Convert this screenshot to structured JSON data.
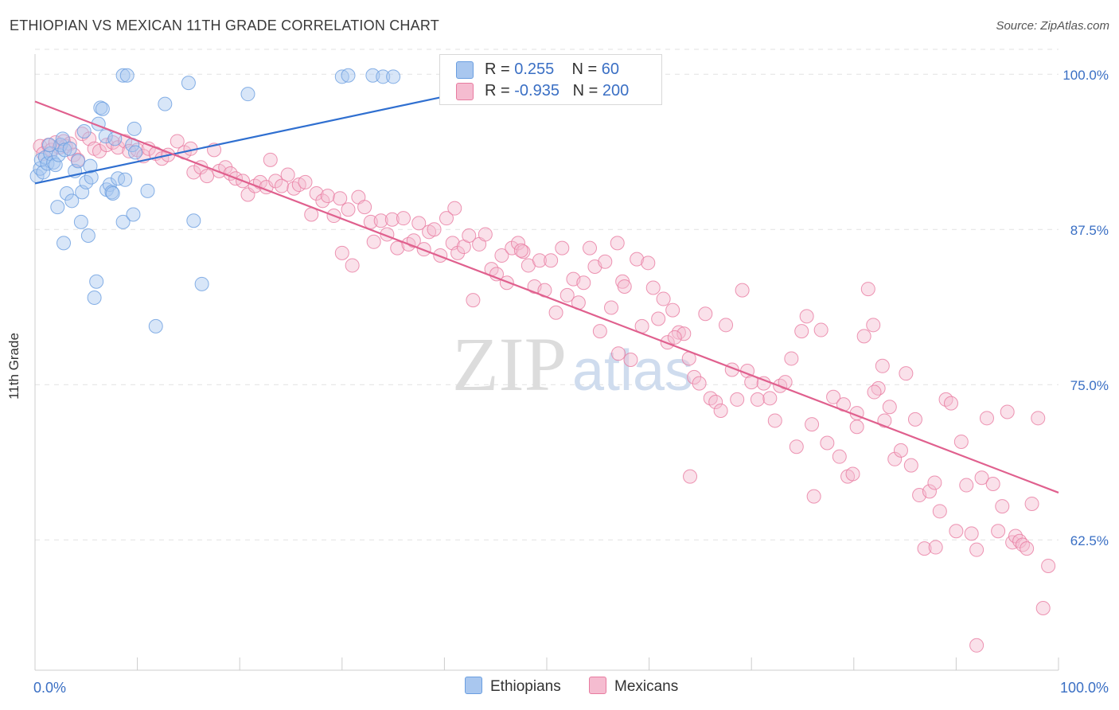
{
  "chart_data": {
    "type": "scatter",
    "title": "ETHIOPIAN VS MEXICAN 11TH GRADE CORRELATION CHART",
    "source": "Source: ZipAtlas.com",
    "ylabel": "11th Grade",
    "xlim": [
      0,
      100
    ],
    "ylim": [
      52,
      102
    ],
    "x_tick_labels": {
      "left": "0.0%",
      "right": "100.0%"
    },
    "y_ticks": [
      {
        "value": 100.0,
        "label": "100.0%"
      },
      {
        "value": 87.5,
        "label": "87.5%"
      },
      {
        "value": 75.0,
        "label": "75.0%"
      },
      {
        "value": 62.5,
        "label": "62.5%"
      }
    ],
    "grid": "horizontal dashed",
    "watermark": {
      "zip": "ZIP",
      "atlas": "atlas"
    },
    "legend": {
      "position": "top-center",
      "rows": [
        {
          "r_label": "R = ",
          "r_value": "0.255",
          "n_label": "N = ",
          "n_value": "60"
        },
        {
          "r_label": "R = ",
          "r_value": "-0.935",
          "n_label": "N = ",
          "n_value": "200"
        }
      ]
    },
    "series": [
      {
        "name": "Ethiopians",
        "color": "#6a9ee0",
        "fill": "#a9c7ef",
        "trend": {
          "x": [
            0,
            40
          ],
          "y": [
            91.2,
            98.2
          ]
        },
        "points": [
          [
            0.2,
            91.8
          ],
          [
            0.5,
            92.4
          ],
          [
            0.6,
            93.1
          ],
          [
            0.8,
            92.1
          ],
          [
            1.0,
            93.3
          ],
          [
            1.2,
            92.8
          ],
          [
            1.5,
            93.6
          ],
          [
            1.8,
            92.9
          ],
          [
            2.0,
            92.7
          ],
          [
            2.3,
            93.5
          ],
          [
            2.5,
            94.3
          ],
          [
            2.7,
            94.8
          ],
          [
            2.9,
            93.9
          ],
          [
            3.1,
            90.4
          ],
          [
            2.2,
            89.3
          ],
          [
            2.8,
            86.4
          ],
          [
            3.6,
            89.8
          ],
          [
            3.9,
            92.2
          ],
          [
            4.2,
            93.0
          ],
          [
            4.6,
            90.5
          ],
          [
            4.5,
            88.1
          ],
          [
            4.8,
            95.4
          ],
          [
            5.0,
            91.3
          ],
          [
            5.2,
            87.0
          ],
          [
            5.5,
            91.7
          ],
          [
            5.4,
            92.6
          ],
          [
            6.0,
            83.3
          ],
          [
            5.8,
            82.0
          ],
          [
            6.2,
            96.0
          ],
          [
            6.4,
            97.3
          ],
          [
            6.6,
            97.2
          ],
          [
            6.9,
            95.0
          ],
          [
            7.0,
            90.7
          ],
          [
            7.3,
            91.1
          ],
          [
            7.5,
            90.5
          ],
          [
            7.6,
            90.4
          ],
          [
            7.8,
            94.8
          ],
          [
            8.1,
            91.6
          ],
          [
            8.6,
            88.1
          ],
          [
            8.8,
            91.5
          ],
          [
            8.6,
            99.9
          ],
          [
            9.0,
            99.9
          ],
          [
            9.5,
            94.3
          ],
          [
            9.6,
            88.7
          ],
          [
            9.7,
            95.6
          ],
          [
            9.8,
            93.7
          ],
          [
            11.0,
            90.6
          ],
          [
            11.8,
            79.7
          ],
          [
            12.7,
            97.6
          ],
          [
            15.0,
            99.3
          ],
          [
            15.5,
            88.2
          ],
          [
            16.3,
            83.1
          ],
          [
            20.8,
            98.4
          ],
          [
            30.0,
            99.8
          ],
          [
            30.6,
            99.9
          ],
          [
            33.0,
            99.9
          ],
          [
            34.0,
            99.8
          ],
          [
            35.0,
            99.8
          ],
          [
            1.4,
            94.3
          ],
          [
            3.4,
            94.0
          ]
        ]
      },
      {
        "name": "Mexicans",
        "color": "#e87ba0",
        "fill": "#f5bcd0",
        "trend": {
          "x": [
            0,
            100
          ],
          "y": [
            97.8,
            66.3
          ]
        },
        "points": [
          [
            0.5,
            94.2
          ],
          [
            0.8,
            93.6
          ],
          [
            1.3,
            94.3
          ],
          [
            1.6,
            93.9
          ],
          [
            2.0,
            94.5
          ],
          [
            2.4,
            94.1
          ],
          [
            2.8,
            94.6
          ],
          [
            3.0,
            94.2
          ],
          [
            3.4,
            94.4
          ],
          [
            3.8,
            93.5
          ],
          [
            4.2,
            93.1
          ],
          [
            4.6,
            95.2
          ],
          [
            5.3,
            94.8
          ],
          [
            5.8,
            94.0
          ],
          [
            6.3,
            93.8
          ],
          [
            7.0,
            94.3
          ],
          [
            7.6,
            94.5
          ],
          [
            8.1,
            94.1
          ],
          [
            8.8,
            94.6
          ],
          [
            9.2,
            93.8
          ],
          [
            10.0,
            93.9
          ],
          [
            10.6,
            93.4
          ],
          [
            11.1,
            94.0
          ],
          [
            11.8,
            93.6
          ],
          [
            12.4,
            93.2
          ],
          [
            13.0,
            93.5
          ],
          [
            13.9,
            94.6
          ],
          [
            14.6,
            93.7
          ],
          [
            15.2,
            94.0
          ],
          [
            15.5,
            92.1
          ],
          [
            16.2,
            92.5
          ],
          [
            16.8,
            91.8
          ],
          [
            17.5,
            93.9
          ],
          [
            18.0,
            92.2
          ],
          [
            18.6,
            92.5
          ],
          [
            19.1,
            92.0
          ],
          [
            19.6,
            91.6
          ],
          [
            20.3,
            91.4
          ],
          [
            20.8,
            90.3
          ],
          [
            21.5,
            91.0
          ],
          [
            22.0,
            91.3
          ],
          [
            22.6,
            90.9
          ],
          [
            23.0,
            93.1
          ],
          [
            23.5,
            91.4
          ],
          [
            24.1,
            91.0
          ],
          [
            24.7,
            91.9
          ],
          [
            25.3,
            90.8
          ],
          [
            25.8,
            91.1
          ],
          [
            26.4,
            91.3
          ],
          [
            27.0,
            88.7
          ],
          [
            27.5,
            90.4
          ],
          [
            28.1,
            89.8
          ],
          [
            28.6,
            90.2
          ],
          [
            29.2,
            88.6
          ],
          [
            29.8,
            90.0
          ],
          [
            30.0,
            85.6
          ],
          [
            30.6,
            89.1
          ],
          [
            31.0,
            84.6
          ],
          [
            31.6,
            90.1
          ],
          [
            32.2,
            89.3
          ],
          [
            32.8,
            88.1
          ],
          [
            33.1,
            86.5
          ],
          [
            33.8,
            88.2
          ],
          [
            34.4,
            87.1
          ],
          [
            34.9,
            88.3
          ],
          [
            35.4,
            86.0
          ],
          [
            36.0,
            88.4
          ],
          [
            36.5,
            86.3
          ],
          [
            37.0,
            86.6
          ],
          [
            37.5,
            88.0
          ],
          [
            38.0,
            85.9
          ],
          [
            38.5,
            87.3
          ],
          [
            39.0,
            87.5
          ],
          [
            39.6,
            85.4
          ],
          [
            40.2,
            88.4
          ],
          [
            40.8,
            86.4
          ],
          [
            41.3,
            85.6
          ],
          [
            41.9,
            86.1
          ],
          [
            42.4,
            87.0
          ],
          [
            42.8,
            81.8
          ],
          [
            43.4,
            86.3
          ],
          [
            44.0,
            87.1
          ],
          [
            44.6,
            84.3
          ],
          [
            45.1,
            83.9
          ],
          [
            45.6,
            85.4
          ],
          [
            46.1,
            83.2
          ],
          [
            46.6,
            86.0
          ],
          [
            47.2,
            86.4
          ],
          [
            47.7,
            85.7
          ],
          [
            48.2,
            84.6
          ],
          [
            48.8,
            82.9
          ],
          [
            49.3,
            85.0
          ],
          [
            49.8,
            82.6
          ],
          [
            50.4,
            85.0
          ],
          [
            50.9,
            80.8
          ],
          [
            51.5,
            86.0
          ],
          [
            52.0,
            82.2
          ],
          [
            52.6,
            83.5
          ],
          [
            53.1,
            81.6
          ],
          [
            53.6,
            83.2
          ],
          [
            54.2,
            86.0
          ],
          [
            54.7,
            84.5
          ],
          [
            55.2,
            79.3
          ],
          [
            55.7,
            84.9
          ],
          [
            56.3,
            81.2
          ],
          [
            56.9,
            86.4
          ],
          [
            57.4,
            83.3
          ],
          [
            57.6,
            82.9
          ],
          [
            58.2,
            77.0
          ],
          [
            58.8,
            85.1
          ],
          [
            59.3,
            79.7
          ],
          [
            59.9,
            84.8
          ],
          [
            60.4,
            82.8
          ],
          [
            60.9,
            80.3
          ],
          [
            61.4,
            81.9
          ],
          [
            61.8,
            78.4
          ],
          [
            62.3,
            81.0
          ],
          [
            62.9,
            79.2
          ],
          [
            63.4,
            79.1
          ],
          [
            63.9,
            77.1
          ],
          [
            64.4,
            75.6
          ],
          [
            64.9,
            75.1
          ],
          [
            65.5,
            80.7
          ],
          [
            66.0,
            73.9
          ],
          [
            66.5,
            73.6
          ],
          [
            67.0,
            72.9
          ],
          [
            67.5,
            79.8
          ],
          [
            68.1,
            76.2
          ],
          [
            68.6,
            73.8
          ],
          [
            69.1,
            82.6
          ],
          [
            69.6,
            76.1
          ],
          [
            70.0,
            75.2
          ],
          [
            70.6,
            73.8
          ],
          [
            71.2,
            75.1
          ],
          [
            71.8,
            73.9
          ],
          [
            72.3,
            72.1
          ],
          [
            72.8,
            74.9
          ],
          [
            73.3,
            75.2
          ],
          [
            73.9,
            77.1
          ],
          [
            74.4,
            70.0
          ],
          [
            74.9,
            79.3
          ],
          [
            75.4,
            80.5
          ],
          [
            75.9,
            71.8
          ],
          [
            76.1,
            66.0
          ],
          [
            76.8,
            79.4
          ],
          [
            77.4,
            70.3
          ],
          [
            78.0,
            74.0
          ],
          [
            78.6,
            69.2
          ],
          [
            79.0,
            73.4
          ],
          [
            79.4,
            67.6
          ],
          [
            79.9,
            67.8
          ],
          [
            80.3,
            71.6
          ],
          [
            81.0,
            78.9
          ],
          [
            81.4,
            82.7
          ],
          [
            81.9,
            79.8
          ],
          [
            82.4,
            74.7
          ],
          [
            83.0,
            72.1
          ],
          [
            83.5,
            73.2
          ],
          [
            84.0,
            69.0
          ],
          [
            84.6,
            69.7
          ],
          [
            85.1,
            75.9
          ],
          [
            85.6,
            68.5
          ],
          [
            86.0,
            72.2
          ],
          [
            86.4,
            66.1
          ],
          [
            86.9,
            61.8
          ],
          [
            87.4,
            66.4
          ],
          [
            87.9,
            67.1
          ],
          [
            88.4,
            64.8
          ],
          [
            89.0,
            73.8
          ],
          [
            89.5,
            73.5
          ],
          [
            90.0,
            63.2
          ],
          [
            90.5,
            70.4
          ],
          [
            91.0,
            66.9
          ],
          [
            91.5,
            63.0
          ],
          [
            92.0,
            61.7
          ],
          [
            92.5,
            67.5
          ],
          [
            93.0,
            72.3
          ],
          [
            93.6,
            67.0
          ],
          [
            94.1,
            63.2
          ],
          [
            94.5,
            65.2
          ],
          [
            95.0,
            72.8
          ],
          [
            95.5,
            62.3
          ],
          [
            95.8,
            62.8
          ],
          [
            96.2,
            62.4
          ],
          [
            96.5,
            62.1
          ],
          [
            96.9,
            61.8
          ],
          [
            97.4,
            65.4
          ],
          [
            98.0,
            72.3
          ],
          [
            98.5,
            57.0
          ],
          [
            99.0,
            60.4
          ],
          [
            92.0,
            54.0
          ],
          [
            82.0,
            74.4
          ],
          [
            64.0,
            67.6
          ],
          [
            57.0,
            77.5
          ],
          [
            41.0,
            89.2
          ],
          [
            47.5,
            85.8
          ],
          [
            62.5,
            78.8
          ],
          [
            88.0,
            61.9
          ],
          [
            82.8,
            76.5
          ],
          [
            80.3,
            72.7
          ]
        ]
      }
    ]
  }
}
